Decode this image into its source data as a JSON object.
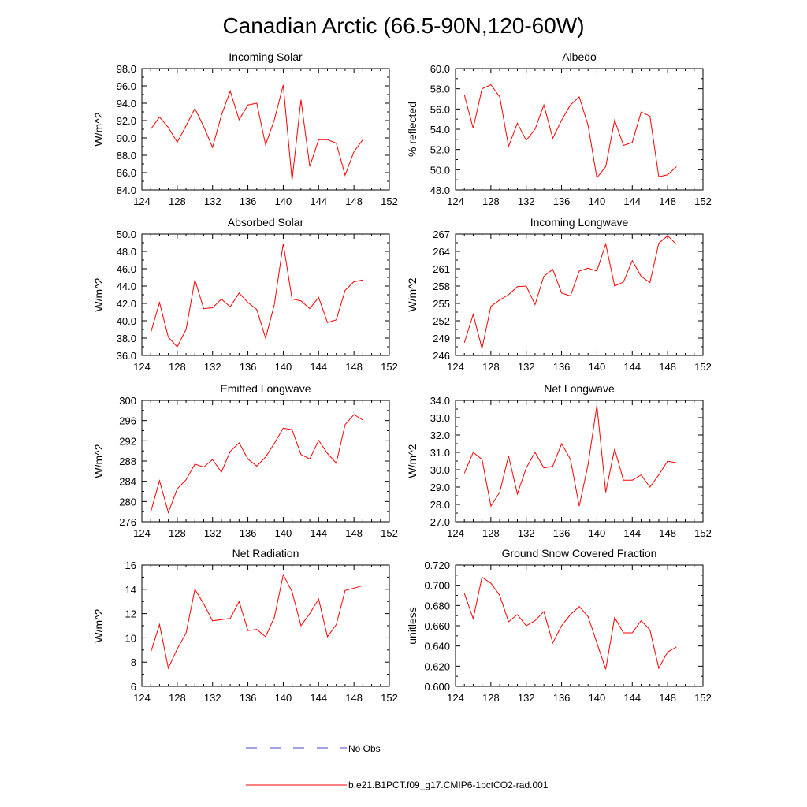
{
  "figure": {
    "title": "Canadian Arctic (66.5-90N,120-60W)",
    "line_color": "#ff0000",
    "obs_color": "#4444cc"
  },
  "legend": {
    "obs_label": "No Obs",
    "model_label": "b.e21.B1PCT.f09_g17.CMIP6-1pctCO2-rad.001"
  },
  "chart_data": [
    {
      "type": "line",
      "title": "Incoming Solar",
      "ylabel": "W/m^2",
      "xlim": [
        124,
        152
      ],
      "xticks": [
        124,
        128,
        132,
        136,
        140,
        144,
        148,
        152
      ],
      "ylim": [
        84,
        98
      ],
      "yticks": [
        "84.0",
        "86.0",
        "88.0",
        "90.0",
        "92.0",
        "94.0",
        "96.0",
        "98.0"
      ],
      "ytick_values": [
        84,
        86,
        88,
        90,
        92,
        94,
        96,
        98
      ],
      "x": [
        125,
        126,
        127,
        128,
        129,
        130,
        131,
        132,
        133,
        134,
        135,
        136,
        137,
        138,
        139,
        140,
        141,
        142,
        143,
        144,
        145,
        146,
        147,
        148,
        149
      ],
      "series": [
        {
          "values": [
            91.0,
            92.4,
            91.2,
            89.5,
            91.4,
            93.4,
            91.3,
            88.9,
            92.6,
            95.4,
            92.1,
            93.8,
            94.0,
            89.2,
            92.1,
            96.1,
            85.1,
            94.4,
            86.7,
            89.8,
            89.8,
            89.4,
            85.7,
            88.4,
            89.8
          ]
        }
      ]
    },
    {
      "type": "line",
      "title": "Albedo",
      "ylabel": "% reflected",
      "xlim": [
        124,
        152
      ],
      "xticks": [
        124,
        128,
        132,
        136,
        140,
        144,
        148,
        152
      ],
      "ylim": [
        48,
        60
      ],
      "yticks": [
        "48.0",
        "50.0",
        "52.0",
        "54.0",
        "56.0",
        "58.0",
        "60.0"
      ],
      "ytick_values": [
        48,
        50,
        52,
        54,
        56,
        58,
        60
      ],
      "x": [
        125,
        126,
        127,
        128,
        129,
        130,
        131,
        132,
        133,
        134,
        135,
        136,
        137,
        138,
        139,
        140,
        141,
        142,
        143,
        144,
        145,
        146,
        147,
        148,
        149
      ],
      "series": [
        {
          "values": [
            57.4,
            54.1,
            58.0,
            58.4,
            57.2,
            52.3,
            54.6,
            52.9,
            54.0,
            56.4,
            53.1,
            54.9,
            56.4,
            57.2,
            54.4,
            49.2,
            50.3,
            54.9,
            52.4,
            52.7,
            55.7,
            55.3,
            49.3,
            49.5,
            50.3
          ]
        }
      ]
    },
    {
      "type": "line",
      "title": "Absorbed Solar",
      "ylabel": "W/m^2",
      "xlim": [
        124,
        152
      ],
      "xticks": [
        124,
        128,
        132,
        136,
        140,
        144,
        148,
        152
      ],
      "ylim": [
        36,
        50
      ],
      "yticks": [
        "36.0",
        "38.0",
        "40.0",
        "42.0",
        "44.0",
        "46.0",
        "48.0",
        "50.0"
      ],
      "ytick_values": [
        36,
        38,
        40,
        42,
        44,
        46,
        48,
        50
      ],
      "x": [
        125,
        126,
        127,
        128,
        129,
        130,
        131,
        132,
        133,
        134,
        135,
        136,
        137,
        138,
        139,
        140,
        141,
        142,
        143,
        144,
        145,
        146,
        147,
        148,
        149
      ],
      "series": [
        {
          "values": [
            38.6,
            42.1,
            38.1,
            37.0,
            39.0,
            44.7,
            41.4,
            41.5,
            42.5,
            41.6,
            43.2,
            42.1,
            41.3,
            38.0,
            41.9,
            48.9,
            42.5,
            42.3,
            41.4,
            42.7,
            39.8,
            40.1,
            43.5,
            44.5,
            44.7
          ]
        }
      ]
    },
    {
      "type": "line",
      "title": "Incoming Longwave",
      "ylabel": "W/m^2",
      "xlim": [
        124,
        152
      ],
      "xticks": [
        124,
        128,
        132,
        136,
        140,
        144,
        148,
        152
      ],
      "ylim": [
        246,
        267
      ],
      "yticks": [
        "246",
        "249",
        "252",
        "255",
        "258",
        "261",
        "264",
        "267"
      ],
      "ytick_values": [
        246,
        249,
        252,
        255,
        258,
        261,
        264,
        267
      ],
      "x": [
        125,
        126,
        127,
        128,
        129,
        130,
        131,
        132,
        133,
        134,
        135,
        136,
        137,
        138,
        139,
        140,
        141,
        142,
        143,
        144,
        145,
        146,
        147,
        148,
        149
      ],
      "series": [
        {
          "values": [
            248.2,
            253.1,
            247.2,
            254.5,
            255.6,
            256.5,
            257.9,
            258.0,
            254.8,
            259.7,
            260.9,
            256.8,
            256.3,
            260.6,
            261.1,
            260.6,
            265.3,
            258.0,
            258.7,
            262.4,
            259.7,
            258.6,
            265.4,
            266.7,
            265.2
          ]
        }
      ]
    },
    {
      "type": "line",
      "title": "Emitted Longwave",
      "ylabel": "W/m^2",
      "xlim": [
        124,
        152
      ],
      "xticks": [
        124,
        128,
        132,
        136,
        140,
        144,
        148,
        152
      ],
      "ylim": [
        276,
        300
      ],
      "yticks": [
        "276",
        "280",
        "284",
        "288",
        "292",
        "296",
        "300"
      ],
      "ytick_values": [
        276,
        280,
        284,
        288,
        292,
        296,
        300
      ],
      "x": [
        125,
        126,
        127,
        128,
        129,
        130,
        131,
        132,
        133,
        134,
        135,
        136,
        137,
        138,
        139,
        140,
        141,
        142,
        143,
        144,
        145,
        146,
        147,
        148,
        149
      ],
      "series": [
        {
          "values": [
            277.9,
            284.1,
            277.8,
            282.5,
            284.3,
            287.4,
            286.8,
            288.3,
            285.8,
            289.9,
            291.6,
            288.4,
            287.0,
            288.8,
            291.5,
            294.5,
            294.2,
            289.3,
            288.4,
            292.1,
            289.5,
            287.6,
            295.2,
            297.2,
            296.1
          ]
        }
      ]
    },
    {
      "type": "line",
      "title": "Net Longwave",
      "ylabel": "W/m^2",
      "xlim": [
        124,
        152
      ],
      "xticks": [
        124,
        128,
        132,
        136,
        140,
        144,
        148,
        152
      ],
      "ylim": [
        27,
        34
      ],
      "yticks": [
        "27.0",
        "28.0",
        "29.0",
        "30.0",
        "31.0",
        "32.0",
        "33.0",
        "34.0"
      ],
      "ytick_values": [
        27,
        28,
        29,
        30,
        31,
        32,
        33,
        34
      ],
      "x": [
        125,
        126,
        127,
        128,
        129,
        130,
        131,
        132,
        133,
        134,
        135,
        136,
        137,
        138,
        139,
        140,
        141,
        142,
        143,
        144,
        145,
        146,
        147,
        148,
        149
      ],
      "series": [
        {
          "values": [
            29.8,
            31.0,
            30.6,
            27.9,
            28.7,
            30.8,
            28.6,
            30.1,
            31.0,
            30.1,
            30.2,
            31.5,
            30.6,
            27.9,
            30.3,
            33.7,
            28.7,
            31.2,
            29.4,
            29.4,
            29.7,
            29.0,
            29.7,
            30.5,
            30.4
          ]
        }
      ]
    },
    {
      "type": "line",
      "title": "Net Radiation",
      "ylabel": "W/m^2",
      "xlim": [
        124,
        152
      ],
      "xticks": [
        124,
        128,
        132,
        136,
        140,
        144,
        148,
        152
      ],
      "ylim": [
        6,
        16
      ],
      "yticks": [
        "6",
        "8",
        "10",
        "12",
        "14",
        "16"
      ],
      "ytick_values": [
        6,
        8,
        10,
        12,
        14,
        16
      ],
      "x": [
        125,
        126,
        127,
        128,
        129,
        130,
        131,
        132,
        133,
        134,
        135,
        136,
        137,
        138,
        139,
        140,
        141,
        142,
        143,
        144,
        145,
        146,
        147,
        148,
        149
      ],
      "series": [
        {
          "values": [
            8.8,
            11.1,
            7.5,
            9.1,
            10.4,
            14.0,
            12.8,
            11.4,
            11.5,
            11.6,
            13.0,
            10.6,
            10.7,
            10.1,
            11.7,
            15.2,
            13.8,
            11.0,
            12.0,
            13.2,
            10.1,
            11.1,
            13.9,
            14.1,
            14.3
          ]
        }
      ]
    },
    {
      "type": "line",
      "title": "Ground Snow Covered Fraction",
      "ylabel": "unitless",
      "xlim": [
        124,
        152
      ],
      "xticks": [
        124,
        128,
        132,
        136,
        140,
        144,
        148,
        152
      ],
      "ylim": [
        0.6,
        0.72
      ],
      "yticks": [
        "0.600",
        "0.620",
        "0.640",
        "0.660",
        "0.680",
        "0.700",
        "0.720"
      ],
      "ytick_values": [
        0.6,
        0.62,
        0.64,
        0.66,
        0.68,
        0.7,
        0.72
      ],
      "x": [
        125,
        126,
        127,
        128,
        129,
        130,
        131,
        132,
        133,
        134,
        135,
        136,
        137,
        138,
        139,
        140,
        141,
        142,
        143,
        144,
        145,
        146,
        147,
        148,
        149
      ],
      "series": [
        {
          "values": [
            0.692,
            0.667,
            0.708,
            0.702,
            0.69,
            0.664,
            0.671,
            0.66,
            0.665,
            0.674,
            0.643,
            0.66,
            0.671,
            0.679,
            0.669,
            0.643,
            0.617,
            0.668,
            0.653,
            0.653,
            0.665,
            0.656,
            0.618,
            0.634,
            0.639
          ]
        }
      ]
    }
  ]
}
